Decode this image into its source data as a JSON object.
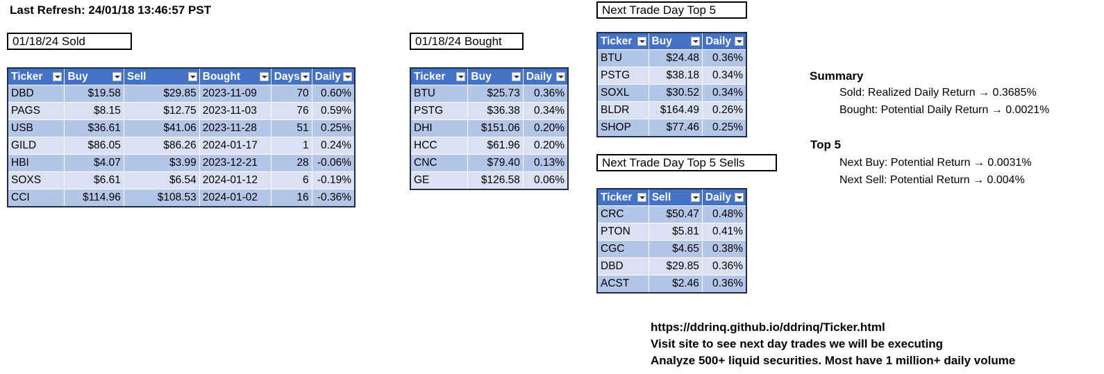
{
  "last_refresh": "Last Refresh: 24/01/18 13:46:57 PST",
  "sold": {
    "title": "01/18/24  Sold",
    "columns": [
      "Ticker",
      "Buy",
      "Sell",
      "Bought",
      "Days",
      "Daily"
    ],
    "rows": [
      [
        "DBD",
        "$19.58",
        "$29.85",
        "2023-11-09",
        "70",
        "0.60%"
      ],
      [
        "PAGS",
        "$8.15",
        "$12.75",
        "2023-11-03",
        "76",
        "0.59%"
      ],
      [
        "USB",
        "$36.61",
        "$41.06",
        "2023-11-28",
        "51",
        "0.25%"
      ],
      [
        "GILD",
        "$86.05",
        "$86.26",
        "2024-01-17",
        "1",
        "0.24%"
      ],
      [
        "HBI",
        "$4.07",
        "$3.99",
        "2023-12-21",
        "28",
        "-0.06%"
      ],
      [
        "SOXS",
        "$6.61",
        "$6.54",
        "2024-01-12",
        "6",
        "-0.19%"
      ],
      [
        "CCI",
        "$114.96",
        "$108.53",
        "2024-01-02",
        "16",
        "-0.36%"
      ]
    ]
  },
  "bought": {
    "title": "01/18/24  Bought",
    "columns": [
      "Ticker",
      "Buy",
      "Daily"
    ],
    "rows": [
      [
        "BTU",
        "$25.73",
        "0.36%"
      ],
      [
        "PSTG",
        "$36.38",
        "0.34%"
      ],
      [
        "DHI",
        "$151.06",
        "0.20%"
      ],
      [
        "HCC",
        "$61.96",
        "0.20%"
      ],
      [
        "CNC",
        "$79.40",
        "0.13%"
      ],
      [
        "GE",
        "$126.58",
        "0.06%"
      ]
    ]
  },
  "top5_buys": {
    "title": "Next Trade Day Top 5",
    "columns": [
      "Ticker",
      "Buy",
      "Daily"
    ],
    "rows": [
      [
        "BTU",
        "$24.48",
        "0.36%"
      ],
      [
        "PSTG",
        "$38.18",
        "0.34%"
      ],
      [
        "SOXL",
        "$30.52",
        "0.34%"
      ],
      [
        "BLDR",
        "$164.49",
        "0.26%"
      ],
      [
        "SHOP",
        "$77.46",
        "0.25%"
      ]
    ]
  },
  "top5_sells": {
    "title": "Next Trade Day Top 5 Sells",
    "columns": [
      "Ticker",
      "Sell",
      "Daily"
    ],
    "rows": [
      [
        "CRC",
        "$50.47",
        "0.48%"
      ],
      [
        "PTON",
        "$5.81",
        "0.41%"
      ],
      [
        "CGC",
        "$4.65",
        "0.38%"
      ],
      [
        "DBD",
        "$29.85",
        "0.36%"
      ],
      [
        "ACST",
        "$2.46",
        "0.36%"
      ]
    ]
  },
  "summary": {
    "heading": "Summary",
    "line1": "Sold: Realized Daily Return → 0.3685%",
    "line2": "Bought: Potential Daily Return → 0.0021%"
  },
  "top5_summary": {
    "heading": "Top 5",
    "line1": "Next Buy: Potential Return → 0.0031%",
    "line2": "Next Sell: Potential Return → 0.004%"
  },
  "footer": {
    "url": "https://ddrinq.github.io/ddrinq/Ticker.html",
    "line2": "Visit site to see next day trades we will be executing",
    "line3": "Analyze 500+ liquid securities.  Most have 1 million+ daily volume"
  },
  "colors": {
    "header_bg": "#4472c4",
    "row_dark": "#b4c6e7",
    "row_light": "#d9e1f2"
  }
}
